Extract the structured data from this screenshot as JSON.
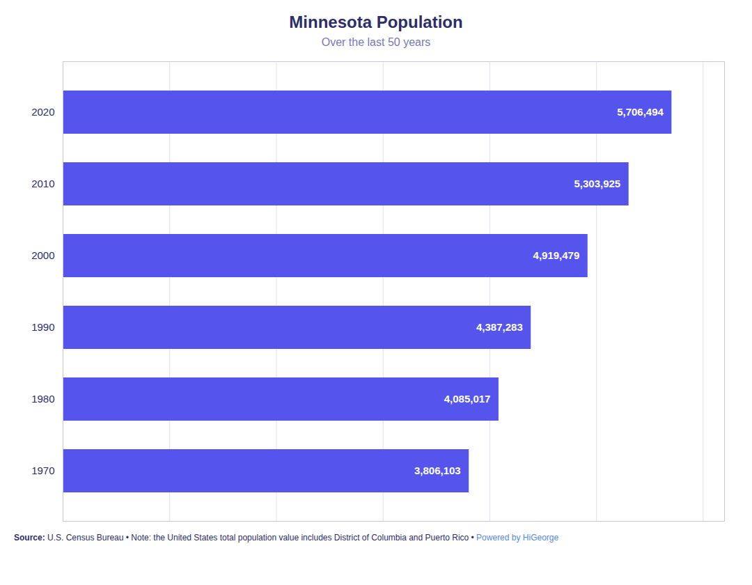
{
  "chart_data": {
    "type": "bar",
    "orientation": "horizontal",
    "title": "Minnesota Population",
    "subtitle": "Over the last 50 years",
    "categories": [
      "2020",
      "2010",
      "2000",
      "1990",
      "1980",
      "1970"
    ],
    "values": [
      5706494,
      5303925,
      4919479,
      4387283,
      4085017,
      3806103
    ],
    "value_labels": [
      "5,706,494",
      "5,303,925",
      "4,919,479",
      "4,387,283",
      "4,085,017",
      "3,806,103"
    ],
    "data_labels": true,
    "color": "#5555ee",
    "xlim": [
      0,
      6200000
    ],
    "xticks": [
      1000000,
      2000000,
      3000000,
      4000000,
      5000000,
      6000000
    ],
    "grid": true,
    "tick_labels": "y",
    "annotations": [
      "Source:",
      "U.S. Census Bureau • Note: the United States total population value includes District of Columbia and Puerto Rico •",
      "Powered by HiGeorge"
    ]
  }
}
